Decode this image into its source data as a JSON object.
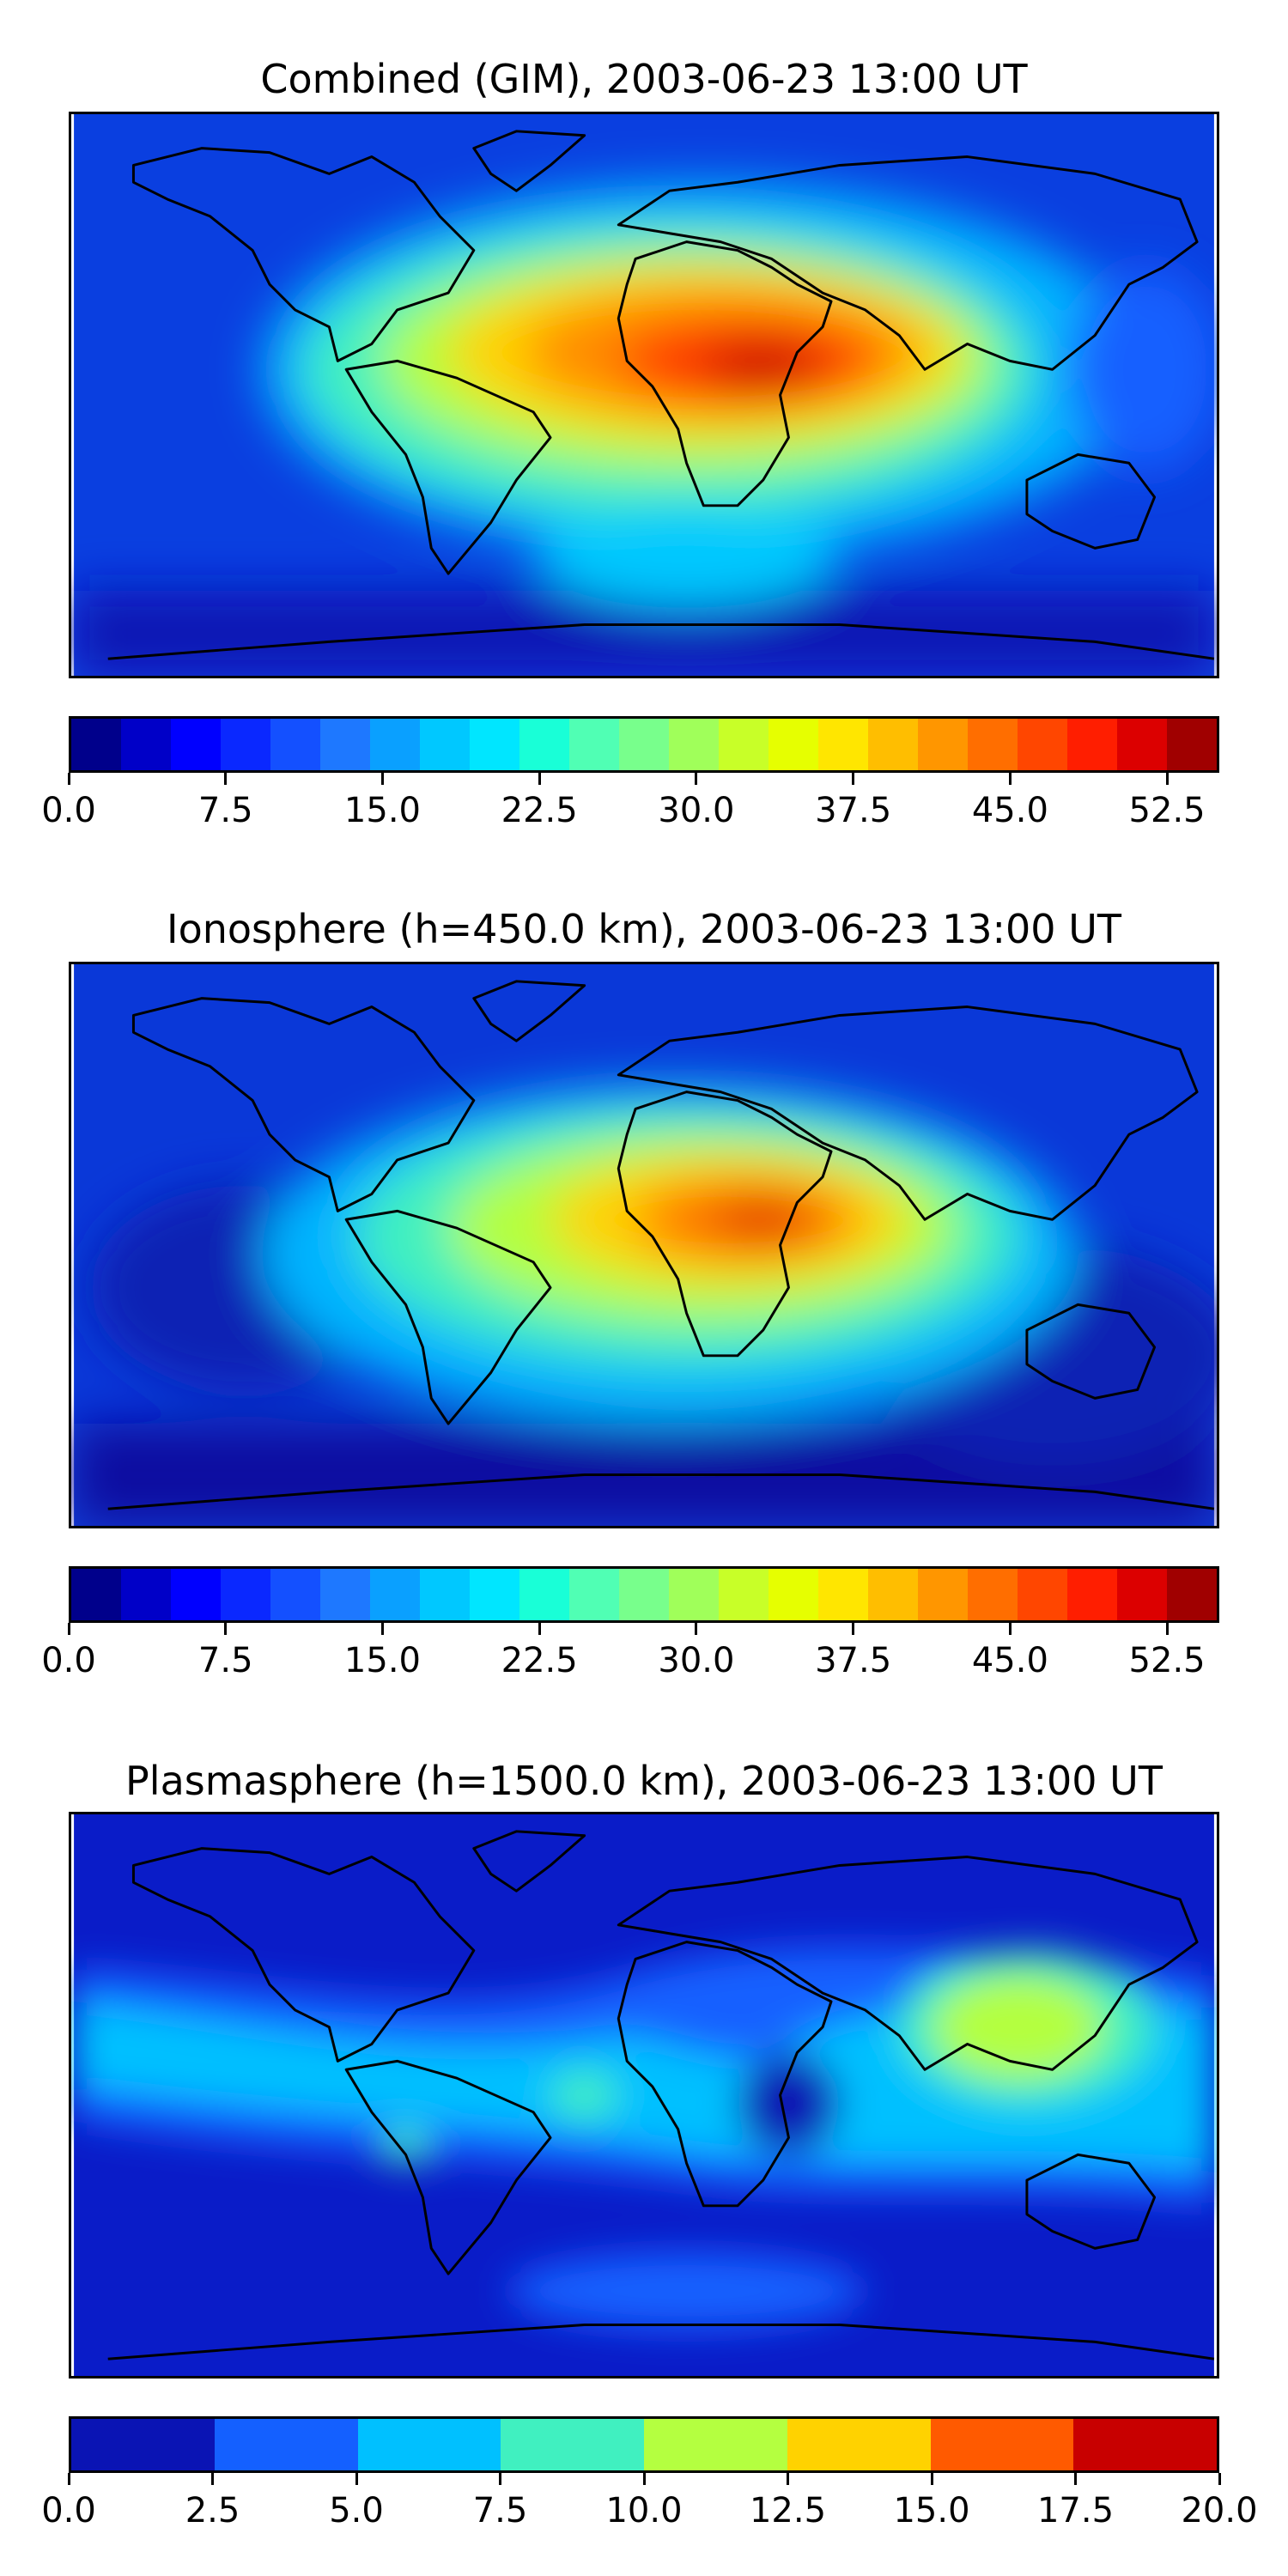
{
  "panels": [
    {
      "title": "Combined (GIM), 2003-06-23 13:00 UT",
      "map_background": "#0a3fe0",
      "colorbar": {
        "colors": [
          "#00008b",
          "#0000c8",
          "#0000ff",
          "#0a28ff",
          "#1450ff",
          "#1e78ff",
          "#0aa0ff",
          "#00c8ff",
          "#00e6ff",
          "#19ffd7",
          "#50ffb4",
          "#78ff8c",
          "#a0ff5a",
          "#c8ff28",
          "#e6ff00",
          "#ffe600",
          "#ffbe00",
          "#ff9600",
          "#ff6e00",
          "#ff4600",
          "#ff1e00",
          "#dc0000",
          "#a00000"
        ],
        "tick_labels": [
          "0.0",
          "7.5",
          "15.0",
          "22.5",
          "30.0",
          "37.5",
          "45.0",
          "52.5"
        ],
        "ticks": [
          0,
          7.5,
          15,
          22.5,
          30,
          37.5,
          45,
          52.5
        ],
        "range": [
          0,
          55
        ]
      }
    },
    {
      "title": "Ionosphere  (h=450.0 km), 2003-06-23 13:00 UT",
      "map_background": "#0a38d8",
      "colorbar": {
        "colors": [
          "#00008b",
          "#0000c8",
          "#0000ff",
          "#0a28ff",
          "#1450ff",
          "#1e78ff",
          "#0aa0ff",
          "#00c8ff",
          "#00e6ff",
          "#19ffd7",
          "#50ffb4",
          "#78ff8c",
          "#a0ff5a",
          "#c8ff28",
          "#e6ff00",
          "#ffe600",
          "#ffbe00",
          "#ff9600",
          "#ff6e00",
          "#ff4600",
          "#ff1e00",
          "#dc0000",
          "#a00000"
        ],
        "tick_labels": [
          "0.0",
          "7.5",
          "15.0",
          "22.5",
          "30.0",
          "37.5",
          "45.0",
          "52.5"
        ],
        "ticks": [
          0,
          7.5,
          15,
          22.5,
          30,
          37.5,
          45,
          52.5
        ],
        "range": [
          0,
          55
        ]
      }
    },
    {
      "title": "Plasmasphere (h=1500.0 km), 2003-06-23 13:00 UT",
      "map_background": "#0a1cc8",
      "colorbar": {
        "colors": [
          "#0a14b4",
          "#1460ff",
          "#00c0ff",
          "#40f0c0",
          "#b4ff40",
          "#ffd200",
          "#ff5a00",
          "#c80000"
        ],
        "tick_labels": [
          "0.0",
          "2.5",
          "5.0",
          "7.5",
          "10.0",
          "12.5",
          "15.0",
          "17.5",
          "20.0"
        ],
        "ticks": [
          0,
          2.5,
          5,
          7.5,
          10,
          12.5,
          15,
          17.5,
          20
        ],
        "range": [
          0,
          20
        ]
      }
    }
  ]
}
